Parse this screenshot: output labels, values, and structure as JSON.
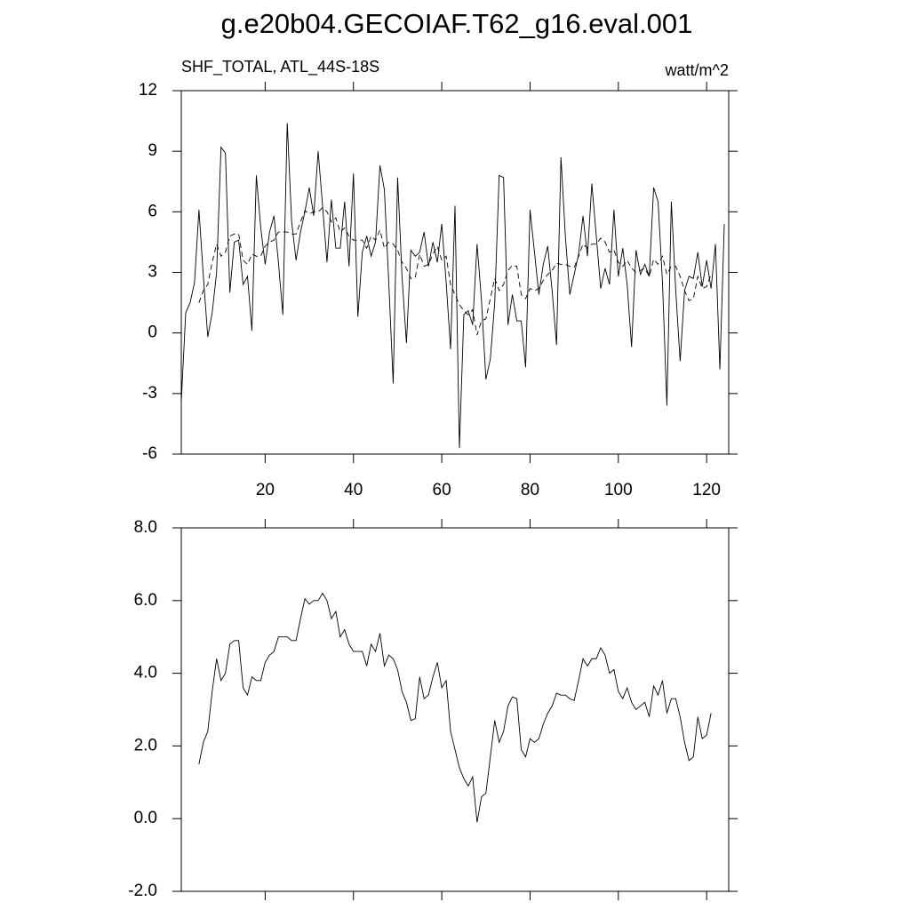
{
  "title": "g.e20b04.GECOIAF.T62_g16.eval.001",
  "chart_data": [
    {
      "type": "line",
      "left_label": "SHF_TOTAL, ATL_44S-18S",
      "right_label": "watt/m^2",
      "xlim": [
        1,
        125
      ],
      "xticks": [
        20,
        40,
        60,
        80,
        100,
        120
      ],
      "show_xtick_labels": true,
      "ylim": [
        -6,
        12
      ],
      "yticks": [
        -6,
        -3,
        0,
        3,
        6,
        9,
        12
      ],
      "series": [
        {
          "color": "#000000",
          "dash": false,
          "x": [
            1,
            2,
            3,
            4,
            5,
            6,
            7,
            8,
            9,
            10,
            11,
            12,
            13,
            14,
            15,
            16,
            17,
            18,
            19,
            20,
            21,
            22,
            23,
            24,
            25,
            26,
            27,
            28,
            29,
            30,
            31,
            32,
            33,
            34,
            35,
            36,
            37,
            38,
            39,
            40,
            41,
            42,
            43,
            44,
            45,
            46,
            47,
            48,
            49,
            50,
            51,
            52,
            53,
            54,
            55,
            56,
            57,
            58,
            59,
            60,
            61,
            62,
            63,
            64,
            65,
            66,
            67,
            68,
            69,
            70,
            71,
            72,
            73,
            74,
            75,
            76,
            77,
            78,
            79,
            80,
            81,
            82,
            83,
            84,
            85,
            86,
            87,
            88,
            89,
            90,
            91,
            92,
            93,
            94,
            95,
            96,
            97,
            98,
            99,
            100,
            101,
            102,
            103,
            104,
            105,
            106,
            107,
            108,
            109,
            110,
            111,
            112,
            113,
            114,
            115,
            116,
            117,
            118,
            119,
            120,
            121,
            122,
            123,
            124
          ],
          "values": [
            -3.4,
            1.0,
            1.5,
            2.5,
            6.1,
            2.8,
            -0.2,
            1.0,
            3.0,
            9.2,
            8.9,
            2.0,
            4.5,
            4.6,
            2.4,
            2.8,
            0.1,
            7.8,
            5.2,
            3.4,
            5.0,
            5.8,
            3.5,
            0.9,
            10.4,
            5.5,
            3.6,
            5.0,
            6.0,
            7.2,
            5.8,
            9.0,
            6.3,
            3.5,
            6.6,
            4.2,
            4.2,
            6.5,
            3.3,
            7.9,
            0.8,
            4.0,
            4.8,
            3.8,
            4.5,
            8.3,
            7.1,
            2.5,
            -2.5,
            7.7,
            2.8,
            -0.5,
            4.1,
            3.8,
            4.0,
            5.0,
            3.3,
            4.5,
            3.5,
            5.4,
            2.5,
            -0.8,
            6.3,
            -5.7,
            0.9,
            1.1,
            0.4,
            4.4,
            1.6,
            -2.3,
            -1.3,
            1.5,
            7.8,
            7.7,
            0.4,
            1.9,
            0.6,
            0.6,
            -1.7,
            6.1,
            4.0,
            1.9,
            3.4,
            4.3,
            2.1,
            -0.6,
            8.7,
            4.8,
            1.9,
            2.9,
            3.9,
            5.8,
            3.8,
            7.4,
            4.8,
            2.2,
            3.2,
            2.4,
            6.1,
            2.8,
            4.2,
            2.4,
            -0.7,
            4.1,
            2.9,
            3.4,
            2.8,
            7.2,
            6.5,
            2.5,
            -3.6,
            6.5,
            2.1,
            -1.4,
            2.1,
            2.8,
            2.7,
            4.0,
            2.3,
            3.6,
            2.2,
            4.4,
            -1.8,
            5.4
          ]
        },
        {
          "color": "#000000",
          "dash": true,
          "x": [
            5,
            6,
            7,
            8,
            9,
            10,
            11,
            12,
            13,
            14,
            15,
            16,
            17,
            18,
            19,
            20,
            21,
            22,
            23,
            24,
            25,
            26,
            27,
            28,
            29,
            30,
            31,
            32,
            33,
            34,
            35,
            36,
            37,
            38,
            39,
            40,
            41,
            42,
            43,
            44,
            45,
            46,
            47,
            48,
            49,
            50,
            51,
            52,
            53,
            54,
            55,
            56,
            57,
            58,
            59,
            60,
            61,
            62,
            63,
            64,
            65,
            66,
            67,
            68,
            69,
            70,
            71,
            72,
            73,
            74,
            75,
            76,
            77,
            78,
            79,
            80,
            81,
            82,
            83,
            84,
            85,
            86,
            87,
            88,
            89,
            90,
            91,
            92,
            93,
            94,
            95,
            96,
            97,
            98,
            99,
            100,
            101,
            102,
            103,
            104,
            105,
            106,
            107,
            108,
            109,
            110,
            111,
            112,
            113,
            114,
            115,
            116,
            117,
            118,
            119,
            120,
            121
          ],
          "values": [
            1.5,
            2.1,
            2.4,
            3.5,
            4.4,
            3.8,
            4.0,
            4.8,
            4.9,
            4.9,
            3.6,
            3.4,
            3.9,
            3.8,
            3.8,
            4.3,
            4.5,
            4.6,
            5.0,
            5.0,
            5.0,
            4.9,
            4.9,
            5.5,
            6.05,
            5.9,
            6.0,
            6.0,
            6.2,
            6.0,
            5.5,
            5.7,
            5.0,
            5.2,
            4.8,
            4.6,
            4.6,
            4.6,
            4.2,
            4.8,
            4.6,
            5.1,
            4.2,
            4.5,
            4.4,
            4.1,
            3.5,
            3.2,
            2.7,
            2.75,
            3.9,
            3.3,
            3.4,
            3.9,
            4.3,
            3.6,
            3.8,
            2.4,
            1.9,
            1.4,
            1.1,
            0.9,
            1.15,
            -0.1,
            0.6,
            0.7,
            1.7,
            2.7,
            2.1,
            2.4,
            3.1,
            3.35,
            3.3,
            1.9,
            1.7,
            2.2,
            2.1,
            2.2,
            2.6,
            2.9,
            3.1,
            3.45,
            3.4,
            3.4,
            3.3,
            3.25,
            3.8,
            4.4,
            4.2,
            4.4,
            4.4,
            4.7,
            4.5,
            4.0,
            4.1,
            3.5,
            3.3,
            3.6,
            3.2,
            3.0,
            3.1,
            3.2,
            2.8,
            3.65,
            3.4,
            3.8,
            2.9,
            3.3,
            3.3,
            2.8,
            2.1,
            1.6,
            1.7,
            2.8,
            2.2,
            2.3,
            2.9
          ]
        }
      ]
    },
    {
      "type": "line",
      "xlim": [
        1,
        125
      ],
      "xticks": [
        20,
        40,
        60,
        80,
        100,
        120
      ],
      "show_xtick_labels": false,
      "ylim": [
        -2,
        8
      ],
      "yticks": [
        {
          "value": -2,
          "label": "-2.0"
        },
        {
          "value": 0,
          "label": "0.0"
        },
        {
          "value": 2,
          "label": "2.0"
        },
        {
          "value": 4,
          "label": "4.0"
        },
        {
          "value": 6,
          "label": "6.0"
        },
        {
          "value": 8,
          "label": "8.0"
        }
      ],
      "series": [
        {
          "color": "#000000",
          "dash": false,
          "x": [
            5,
            6,
            7,
            8,
            9,
            10,
            11,
            12,
            13,
            14,
            15,
            16,
            17,
            18,
            19,
            20,
            21,
            22,
            23,
            24,
            25,
            26,
            27,
            28,
            29,
            30,
            31,
            32,
            33,
            34,
            35,
            36,
            37,
            38,
            39,
            40,
            41,
            42,
            43,
            44,
            45,
            46,
            47,
            48,
            49,
            50,
            51,
            52,
            53,
            54,
            55,
            56,
            57,
            58,
            59,
            60,
            61,
            62,
            63,
            64,
            65,
            66,
            67,
            68,
            69,
            70,
            71,
            72,
            73,
            74,
            75,
            76,
            77,
            78,
            79,
            80,
            81,
            82,
            83,
            84,
            85,
            86,
            87,
            88,
            89,
            90,
            91,
            92,
            93,
            94,
            95,
            96,
            97,
            98,
            99,
            100,
            101,
            102,
            103,
            104,
            105,
            106,
            107,
            108,
            109,
            110,
            111,
            112,
            113,
            114,
            115,
            116,
            117,
            118,
            119,
            120,
            121
          ],
          "values": [
            1.5,
            2.1,
            2.4,
            3.5,
            4.4,
            3.8,
            4.0,
            4.8,
            4.9,
            4.9,
            3.6,
            3.4,
            3.9,
            3.8,
            3.8,
            4.3,
            4.5,
            4.6,
            5.0,
            5.0,
            5.0,
            4.9,
            4.9,
            5.5,
            6.05,
            5.9,
            6.0,
            6.0,
            6.2,
            6.0,
            5.5,
            5.7,
            5.0,
            5.2,
            4.8,
            4.6,
            4.6,
            4.6,
            4.2,
            4.8,
            4.6,
            5.1,
            4.2,
            4.5,
            4.4,
            4.1,
            3.5,
            3.2,
            2.7,
            2.75,
            3.9,
            3.3,
            3.4,
            3.9,
            4.3,
            3.6,
            3.8,
            2.4,
            1.9,
            1.4,
            1.1,
            0.9,
            1.15,
            -0.1,
            0.6,
            0.7,
            1.7,
            2.7,
            2.1,
            2.4,
            3.1,
            3.35,
            3.3,
            1.9,
            1.7,
            2.2,
            2.1,
            2.2,
            2.6,
            2.9,
            3.1,
            3.45,
            3.4,
            3.4,
            3.3,
            3.25,
            3.8,
            4.4,
            4.2,
            4.4,
            4.4,
            4.7,
            4.5,
            4.0,
            4.1,
            3.5,
            3.3,
            3.6,
            3.2,
            3.0,
            3.1,
            3.2,
            2.8,
            3.65,
            3.4,
            3.8,
            2.9,
            3.3,
            3.3,
            2.8,
            2.1,
            1.6,
            1.7,
            2.8,
            2.2,
            2.3,
            2.9
          ]
        }
      ]
    }
  ]
}
